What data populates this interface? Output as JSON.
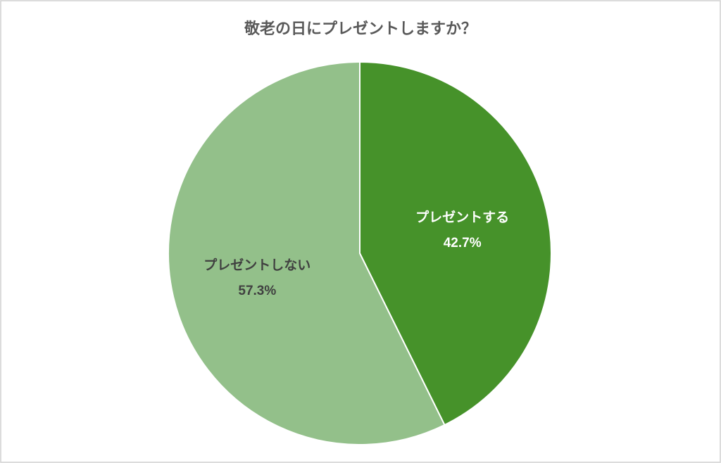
{
  "chart_data": {
    "type": "pie",
    "title": "敬老の日にプレゼントしますか？",
    "categories": [
      "プレゼントする",
      "プレゼントしない"
    ],
    "values": [
      42.7,
      57.3
    ],
    "value_labels": [
      "42.7%",
      "57.3%"
    ],
    "colors": [
      "#46922a",
      "#93c08a"
    ]
  }
}
